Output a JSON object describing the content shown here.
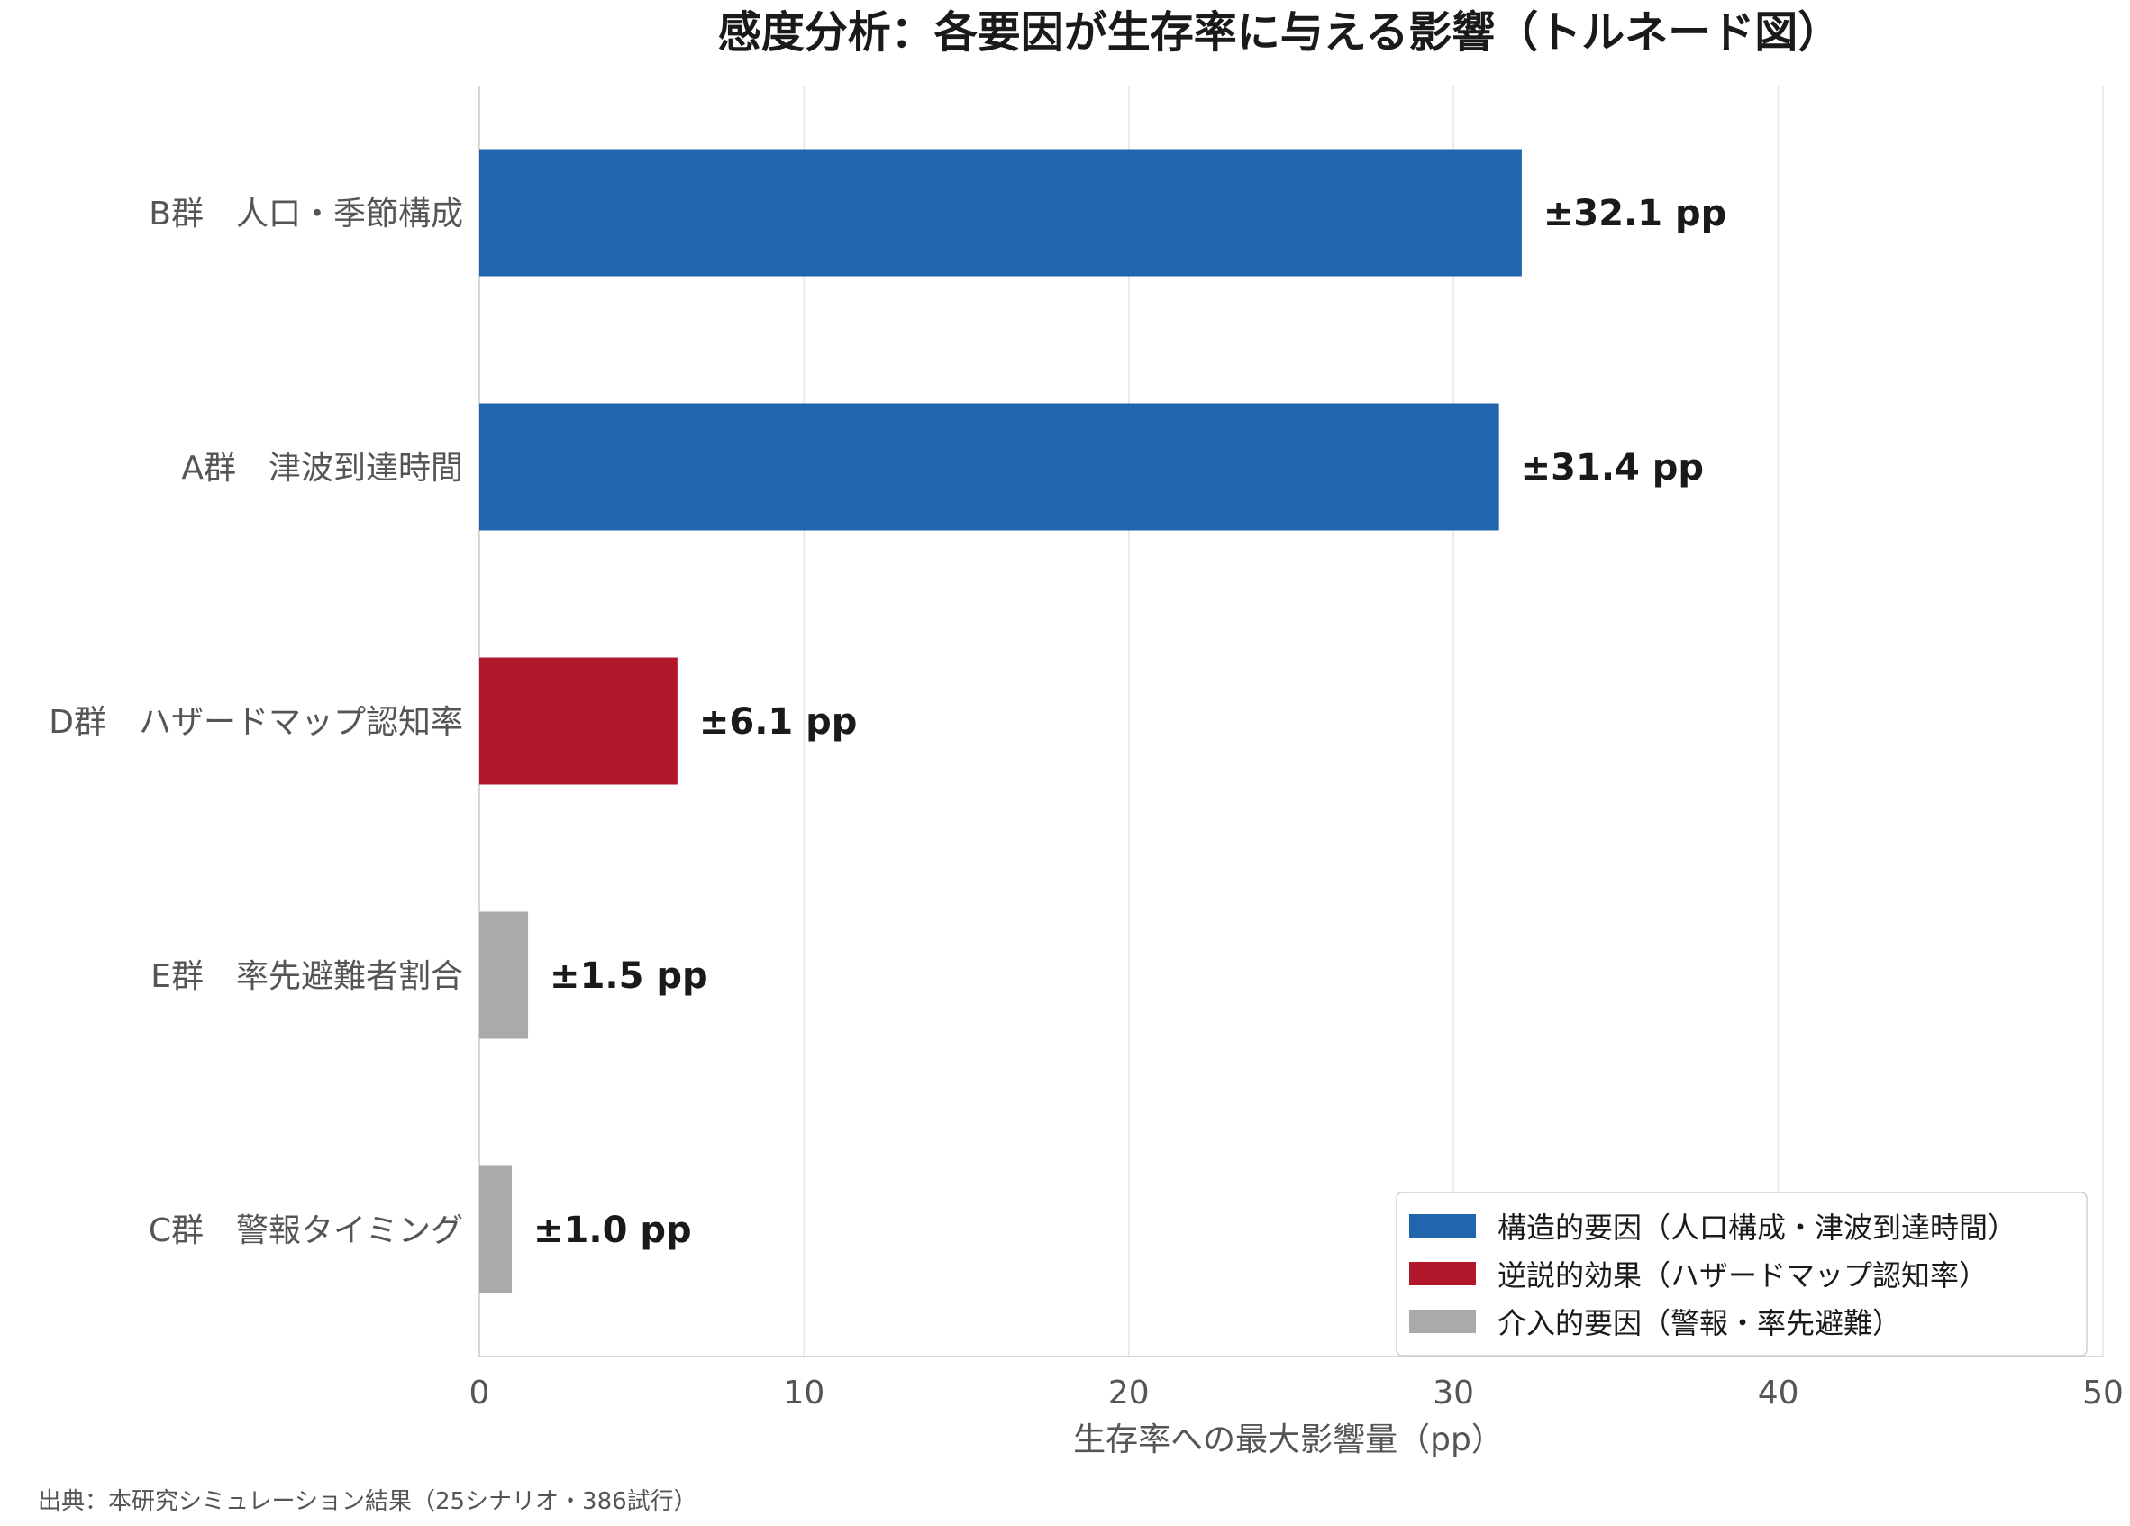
{
  "chart_data": {
    "type": "bar",
    "orientation": "horizontal",
    "title": "感度分析：各要因が生存率に与える影響（トルネード図）",
    "xlabel": "生存率への最大影響量（pp）",
    "ylabel": "",
    "xlim": [
      0,
      50
    ],
    "xticks": [
      "0",
      "10",
      "20",
      "30",
      "40",
      "50"
    ],
    "grid": "vertical",
    "legend_position": "bottom-right",
    "source": "出典：本研究シミュレーション結果（25シナリオ・386試行）",
    "legend": [
      {
        "group": "structural",
        "label": "構造的要因（人口構成・津波到達時間）",
        "color": "#2166ac"
      },
      {
        "group": "paradox",
        "label": "逆説的効果（ハザードマップ認知率）",
        "color": "#b2182b"
      },
      {
        "group": "intervention",
        "label": "介入的要因（警報・率先避難）",
        "color": "#aaaaaa"
      }
    ],
    "bars": [
      {
        "category": "B群　人口・季節構成",
        "value": 32.1,
        "value_label": "±32.1 pp",
        "group": "structural"
      },
      {
        "category": "A群　津波到達時間",
        "value": 31.4,
        "value_label": "±31.4 pp",
        "group": "structural"
      },
      {
        "category": "D群　ハザードマップ認知率",
        "value": 6.1,
        "value_label": "±6.1 pp",
        "group": "paradox"
      },
      {
        "category": "E群　率先避難者割合",
        "value": 1.5,
        "value_label": "±1.5 pp",
        "group": "intervention"
      },
      {
        "category": "C群　警報タイミング",
        "value": 1.0,
        "value_label": "±1.0 pp",
        "group": "intervention"
      }
    ]
  }
}
